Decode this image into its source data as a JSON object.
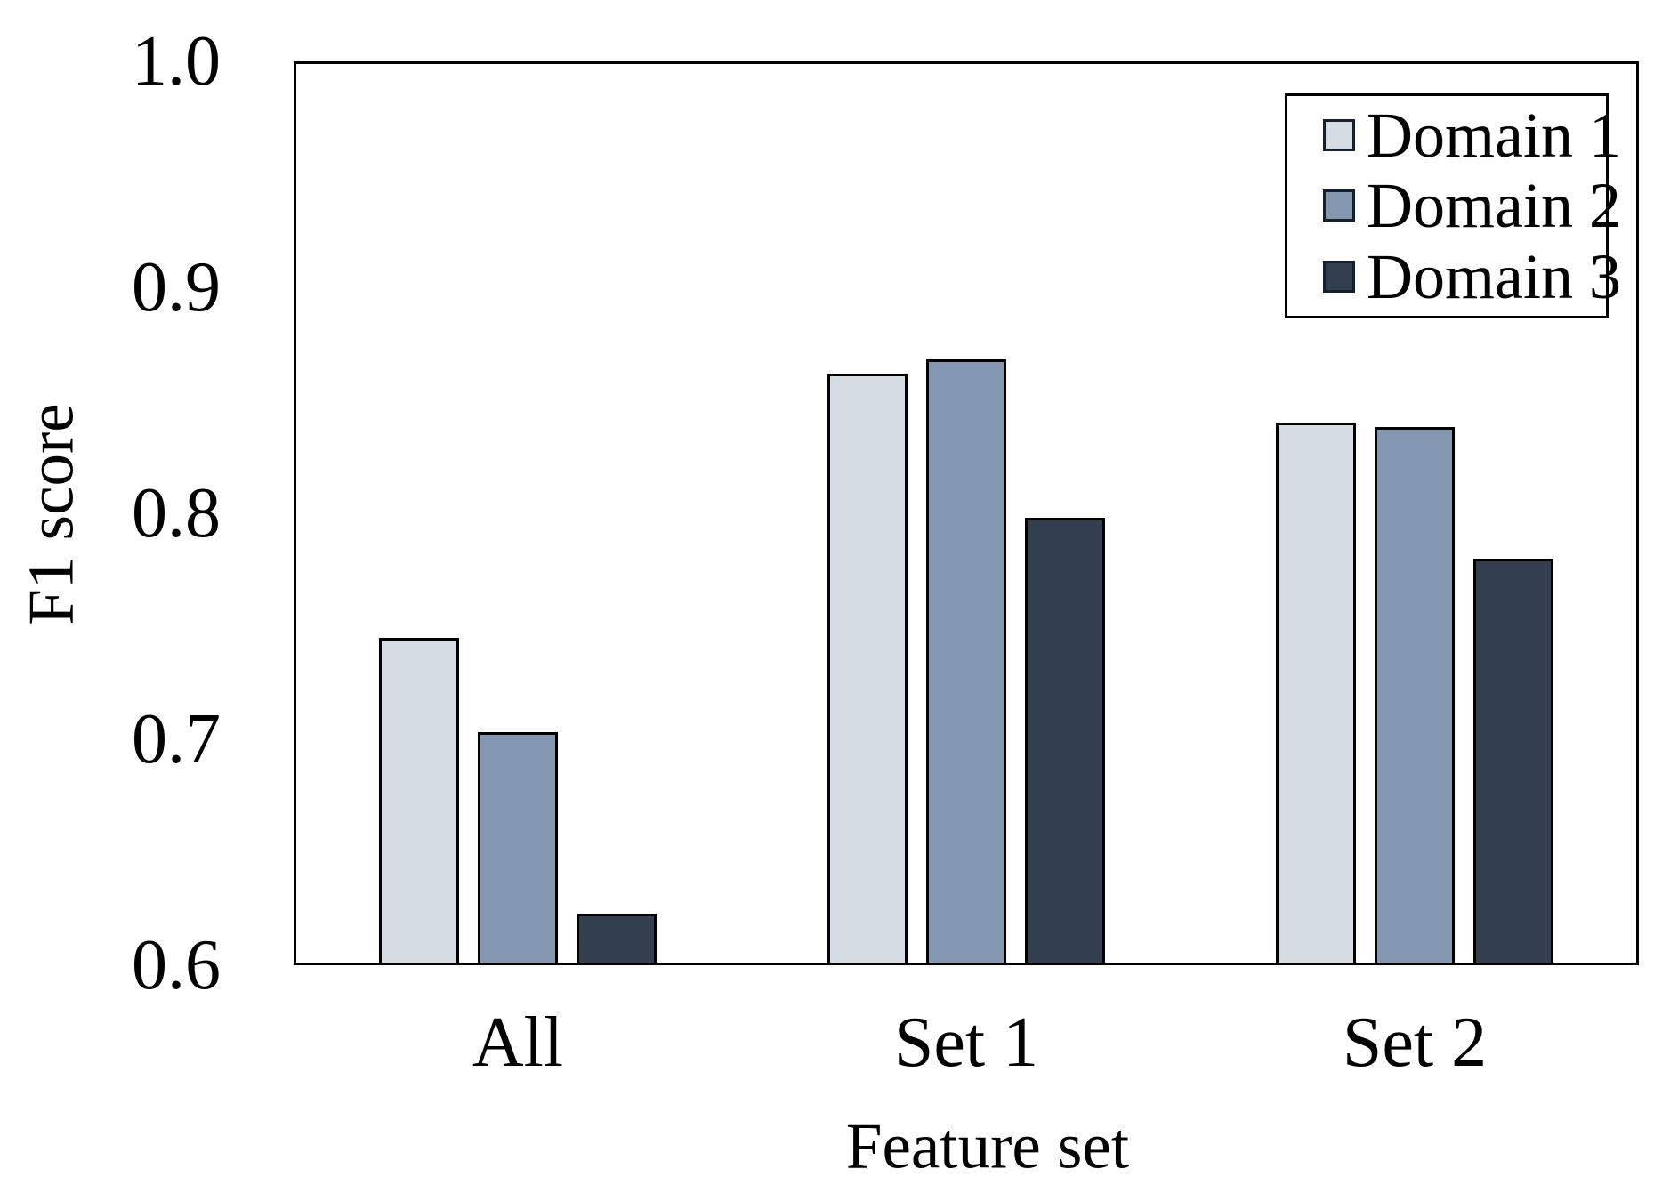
{
  "chart_data": {
    "type": "bar",
    "title": "",
    "xlabel": "Feature set",
    "ylabel": "F1 score",
    "categories": [
      "All",
      "Set 1",
      "Set 2"
    ],
    "series": [
      {
        "name": "Domain 1",
        "color": "#d6dce4",
        "values": [
          0.745,
          0.862,
          0.84
        ]
      },
      {
        "name": "Domain 2",
        "color": "#8497b0",
        "values": [
          0.703,
          0.868,
          0.838
        ]
      },
      {
        "name": "Domain 3",
        "color": "#333f50",
        "values": [
          0.623,
          0.798,
          0.78
        ]
      }
    ],
    "ylim": [
      0.6,
      1.0
    ],
    "yticks": [
      1.0,
      0.9,
      0.8,
      0.7,
      0.6
    ],
    "ytick_labels": [
      "1.0",
      "0.9",
      "0.8",
      "0.7",
      "0.6"
    ],
    "grid": false,
    "legend_position": "top-right",
    "bar_border_color": "#000000",
    "axis_color": "#000000",
    "background_color": "#ffffff"
  }
}
